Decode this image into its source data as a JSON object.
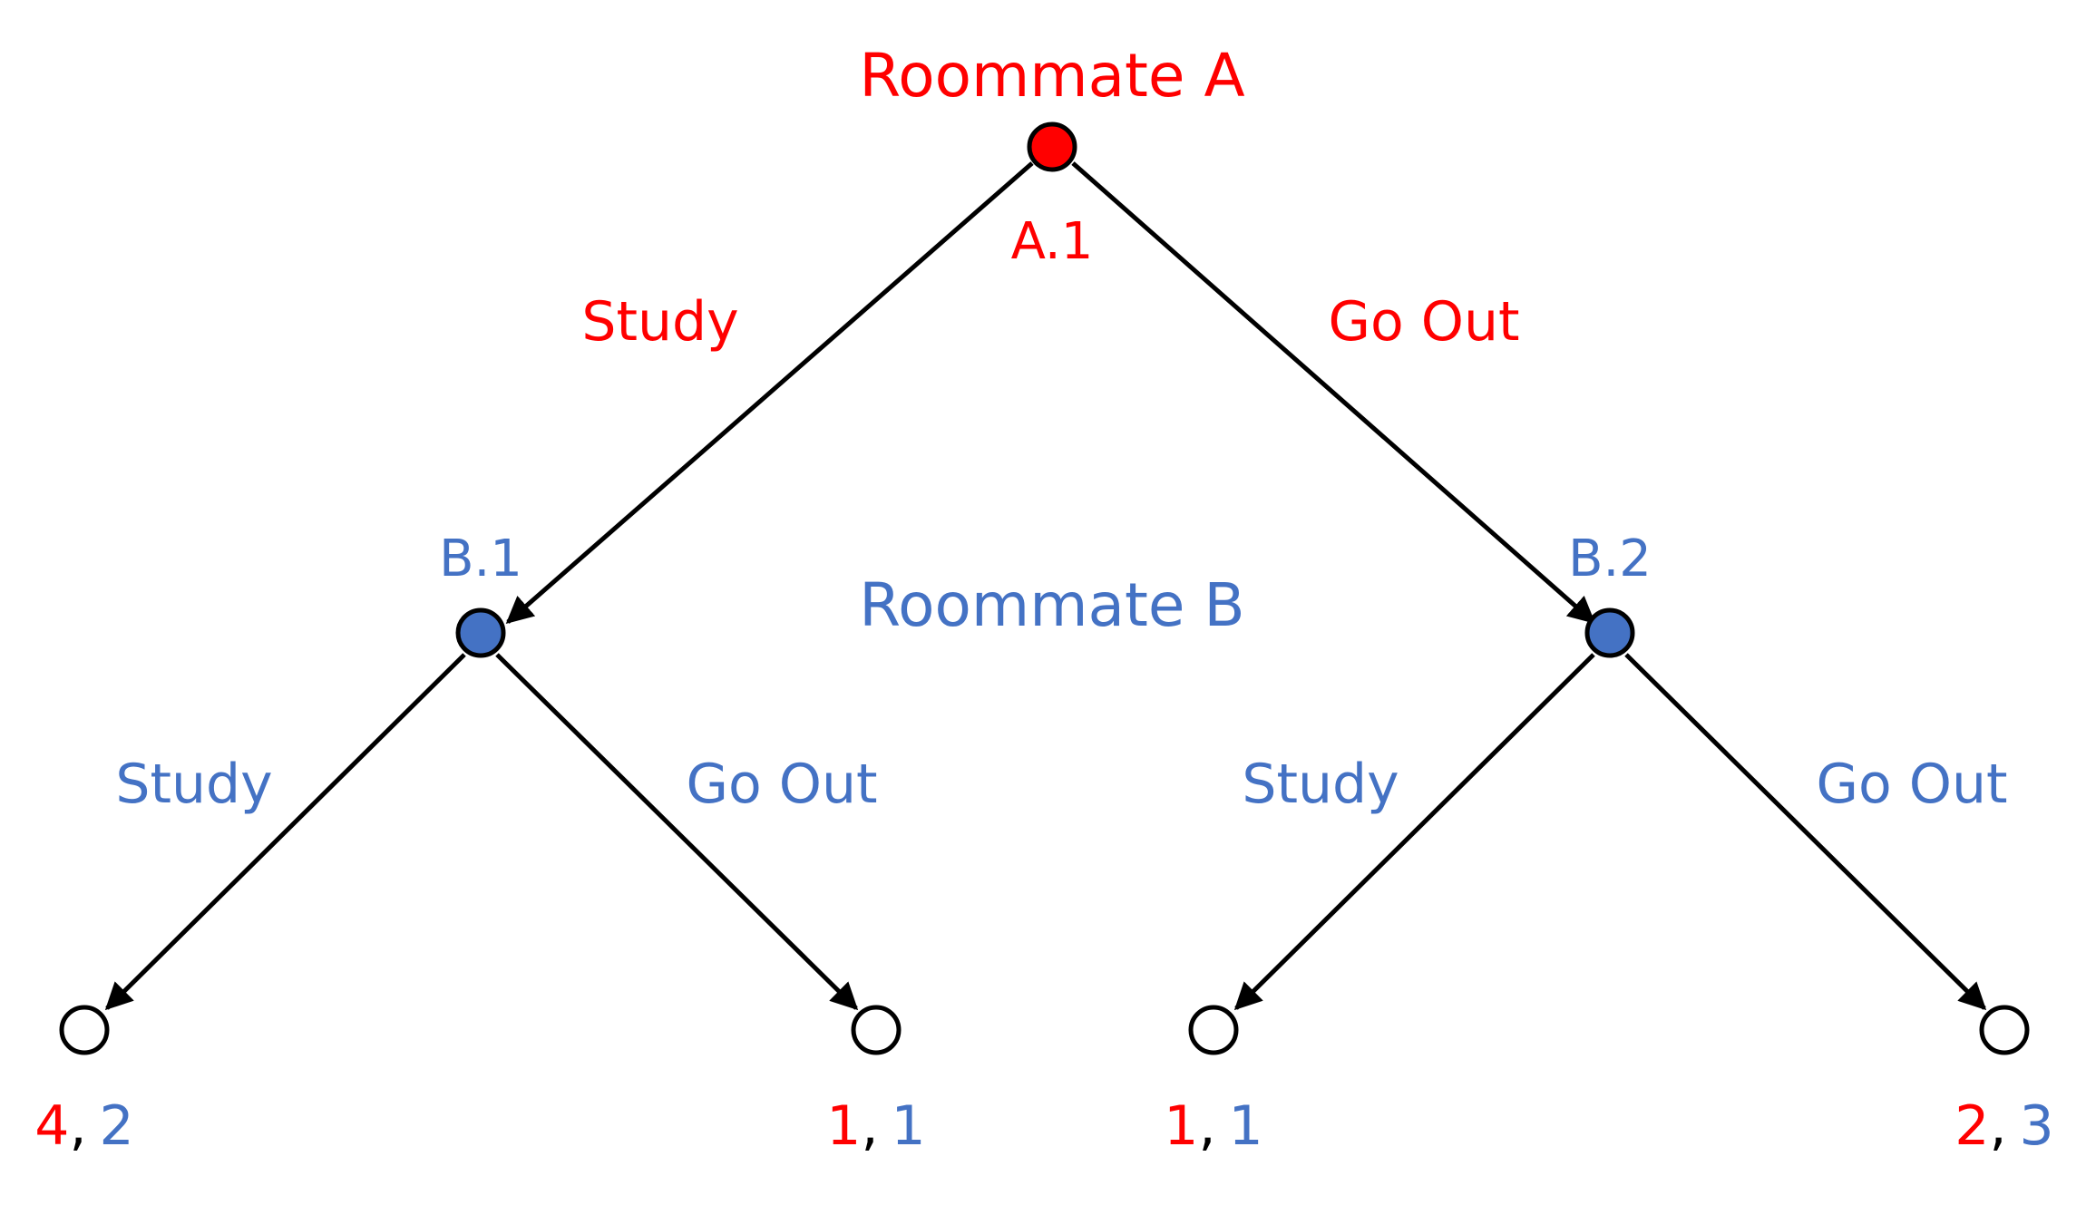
{
  "players": {
    "a": {
      "name": "Roommate A",
      "node_label": "A.1",
      "color": "#ff0000"
    },
    "b": {
      "name": "Roommate B",
      "node_labels": [
        "B.1",
        "B.2"
      ],
      "color": "#4472c4"
    }
  },
  "actions": {
    "a_left": "Study",
    "a_right": "Go Out",
    "b1_left": "Study",
    "b1_right": "Go Out",
    "b2_left": "Study",
    "b2_right": "Go Out"
  },
  "payoffs": [
    {
      "a": "4",
      "sep": ",",
      "b": "2"
    },
    {
      "a": "1",
      "sep": ",",
      "b": "1"
    },
    {
      "a": "1",
      "sep": ",",
      "b": "1"
    },
    {
      "a": "2",
      "sep": ",",
      "b": "3"
    }
  ],
  "colors": {
    "player_a": "#ff0000",
    "player_b": "#4472c4",
    "edge": "#000000",
    "terminal_fill": "#ffffff"
  }
}
